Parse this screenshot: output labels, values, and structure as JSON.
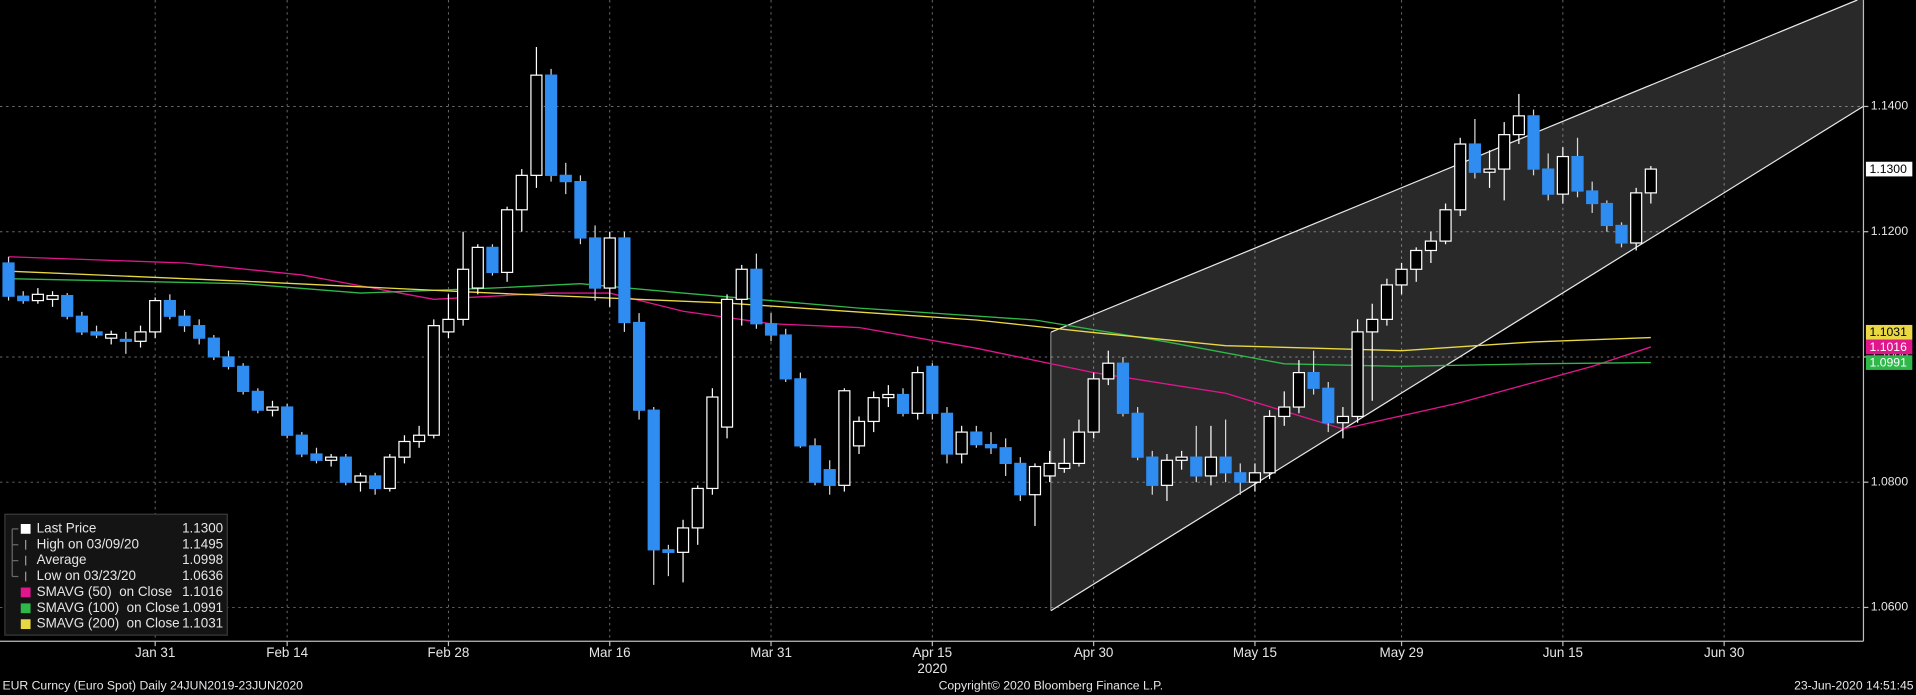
{
  "chart_data": {
    "type": "candlestick",
    "xlim": [
      -0.583,
      126.5
    ],
    "ylim": [
      1.0546,
      1.157
    ],
    "yticks": [
      {
        "value": 1.06,
        "label": "1.0600"
      },
      {
        "value": 1.08,
        "label": "1.0800"
      },
      {
        "value": 1.1,
        "label": "1.1000"
      },
      {
        "value": 1.12,
        "label": "1.1200"
      },
      {
        "value": 1.14,
        "label": "1.1400"
      }
    ],
    "xticks": [
      {
        "value": 10,
        "label": "Jan 31"
      },
      {
        "value": 19,
        "label": "Feb 14"
      },
      {
        "value": 30,
        "label": "Feb 28"
      },
      {
        "value": 41,
        "label": "Mar 16"
      },
      {
        "value": 52,
        "label": "Mar 31"
      },
      {
        "value": 63,
        "label": "Apr 15"
      },
      {
        "value": 74,
        "label": "Apr 30"
      },
      {
        "value": 85,
        "label": "May 15"
      },
      {
        "value": 95,
        "label": "May 29"
      },
      {
        "value": 106,
        "label": "Jun 15"
      },
      {
        "value": 117,
        "label": "Jun 30"
      }
    ],
    "year_label": {
      "value": 63,
      "label": "2020"
    },
    "grid": true,
    "up_color": "#ffffff",
    "down_color": "#2f8cf0",
    "open": [
      1.115,
      1.1097,
      1.109,
      1.1092,
      1.1098,
      1.1065,
      1.104,
      1.103,
      1.1028,
      1.1025,
      1.104,
      1.109,
      1.1065,
      1.105,
      1.103,
      1.1,
      1.0985,
      1.0945,
      1.0915,
      1.092,
      1.0875,
      1.0845,
      1.0835,
      1.084,
      1.08,
      1.081,
      1.079,
      1.084,
      1.0865,
      1.0875,
      1.104,
      1.106,
      1.111,
      1.1175,
      1.1135,
      1.1235,
      1.129,
      1.145,
      1.129,
      1.128,
      1.119,
      1.111,
      1.119,
      1.1055,
      1.0915,
      1.0692,
      1.0688,
      1.0727,
      1.079,
      1.0888,
      1.1092,
      1.114,
      1.1053,
      1.1035,
      1.0965,
      1.0858,
      1.082,
      1.0795,
      1.0858,
      1.0897,
      1.0935,
      1.094,
      1.091,
      1.0985,
      1.091,
      1.0845,
      1.088,
      1.086,
      1.0855,
      1.083,
      1.078,
      1.081,
      1.0822,
      1.083,
      1.088,
      1.0965,
      1.099,
      1.091,
      1.084,
      1.0795,
      1.0835,
      1.084,
      1.081,
      1.084,
      1.0815,
      1.08,
      1.0815,
      1.0905,
      1.092,
      1.0975,
      1.095,
      1.0895,
      1.0905,
      1.104,
      1.106,
      1.1115,
      1.114,
      1.117,
      1.1185,
      1.1235,
      1.134,
      1.1295,
      1.13,
      1.1355,
      1.1385,
      1.13,
      1.126,
      1.132,
      1.1265,
      1.1245,
      1.121,
      1.1182,
      1.1262
    ],
    "high": [
      1.116,
      1.1105,
      1.111,
      1.1105,
      1.1102,
      1.1072,
      1.105,
      1.1042,
      1.104,
      1.105,
      1.1095,
      1.11,
      1.1075,
      1.106,
      1.1035,
      1.101,
      1.099,
      1.095,
      1.093,
      1.0925,
      1.088,
      1.0855,
      1.0845,
      1.0845,
      1.0815,
      1.0815,
      1.0845,
      1.0875,
      1.089,
      1.106,
      1.11,
      1.12,
      1.118,
      1.118,
      1.124,
      1.13,
      1.1495,
      1.146,
      1.131,
      1.129,
      1.121,
      1.12,
      1.12,
      1.107,
      1.092,
      1.07,
      1.074,
      1.0795,
      1.095,
      1.11,
      1.1147,
      1.1165,
      1.107,
      1.1045,
      1.0975,
      1.087,
      1.0835,
      1.095,
      1.0905,
      1.0945,
      1.0955,
      1.095,
      1.0985,
      1.099,
      1.092,
      1.089,
      1.089,
      1.088,
      1.087,
      1.084,
      1.083,
      1.085,
      1.087,
      1.09,
      1.0975,
      1.101,
      1.1,
      1.092,
      1.085,
      1.0845,
      1.085,
      1.089,
      1.089,
      1.09,
      1.083,
      1.083,
      1.0915,
      1.0945,
      1.0995,
      1.101,
      1.096,
      1.092,
      1.106,
      1.1085,
      1.1125,
      1.115,
      1.1175,
      1.12,
      1.1245,
      1.135,
      1.138,
      1.133,
      1.1375,
      1.142,
      1.1395,
      1.1325,
      1.1335,
      1.135,
      1.128,
      1.125,
      1.1215,
      1.127,
      1.1305
    ],
    "low": [
      1.109,
      1.1085,
      1.1085,
      1.108,
      1.106,
      1.1035,
      1.103,
      1.102,
      1.1005,
      1.1015,
      1.103,
      1.106,
      1.104,
      1.102,
      1.0995,
      1.098,
      1.094,
      1.091,
      1.0905,
      1.087,
      1.084,
      1.083,
      1.0825,
      1.0795,
      1.0785,
      1.078,
      1.0785,
      1.083,
      1.0855,
      1.087,
      1.103,
      1.105,
      1.11,
      1.113,
      1.112,
      1.12,
      1.127,
      1.128,
      1.126,
      1.118,
      1.109,
      1.108,
      1.104,
      1.09,
      1.0636,
      1.065,
      1.064,
      1.07,
      1.078,
      1.087,
      1.105,
      1.1045,
      1.1025,
      1.096,
      1.0855,
      1.0795,
      1.078,
      1.0785,
      1.0845,
      1.088,
      1.092,
      1.0905,
      1.09,
      1.09,
      1.083,
      1.083,
      1.0855,
      1.0845,
      1.081,
      1.077,
      1.073,
      1.08,
      1.0815,
      1.0825,
      1.087,
      1.0955,
      1.0905,
      1.0835,
      1.078,
      1.077,
      1.082,
      1.08,
      1.0795,
      1.08,
      1.078,
      1.0785,
      1.0805,
      1.089,
      1.091,
      1.094,
      1.088,
      1.087,
      1.0895,
      1.093,
      1.105,
      1.11,
      1.112,
      1.115,
      1.118,
      1.1225,
      1.1285,
      1.127,
      1.125,
      1.134,
      1.129,
      1.125,
      1.1245,
      1.1255,
      1.123,
      1.12,
      1.1175,
      1.117,
      1.1245
    ],
    "close": [
      1.1097,
      1.109,
      1.11,
      1.1098,
      1.1065,
      1.104,
      1.1035,
      1.1036,
      1.1025,
      1.104,
      1.109,
      1.1065,
      1.105,
      1.103,
      1.1,
      1.0985,
      1.0945,
      1.0915,
      1.092,
      1.0875,
      1.0845,
      1.0835,
      1.084,
      1.08,
      1.081,
      1.079,
      1.084,
      1.0865,
      1.0875,
      1.105,
      1.106,
      1.114,
      1.1175,
      1.1135,
      1.1235,
      1.129,
      1.145,
      1.129,
      1.128,
      1.119,
      1.111,
      1.119,
      1.1055,
      1.0915,
      1.0692,
      1.0688,
      1.0727,
      1.079,
      1.0936,
      1.1092,
      1.114,
      1.1053,
      1.1035,
      1.0965,
      1.0858,
      1.08,
      1.0795,
      1.0946,
      1.0897,
      1.0935,
      1.094,
      1.091,
      1.0975,
      1.091,
      1.0845,
      1.088,
      1.086,
      1.0855,
      1.083,
      1.078,
      1.0825,
      1.083,
      1.083,
      1.088,
      1.0965,
      1.099,
      1.091,
      1.084,
      1.0795,
      1.0835,
      1.084,
      1.081,
      1.084,
      1.0815,
      1.08,
      1.0815,
      1.0905,
      1.092,
      1.0975,
      1.095,
      1.0895,
      1.0905,
      1.104,
      1.106,
      1.1115,
      1.114,
      1.117,
      1.1185,
      1.1235,
      1.134,
      1.1295,
      1.13,
      1.1355,
      1.1385,
      1.13,
      1.126,
      1.132,
      1.1265,
      1.1245,
      1.121,
      1.1182,
      1.1262,
      1.13
    ],
    "series": [
      {
        "name": "SMAVG (50)  on Close",
        "color": "#e0168c",
        "value_label": "1.1016",
        "x": [
          0,
          12,
          20,
          29,
          37,
          41,
          46,
          52,
          58,
          66,
          74,
          83,
          91,
          99,
          108,
          112
        ],
        "values": [
          1.116,
          1.115,
          1.1131,
          1.1092,
          1.1102,
          1.1102,
          1.1073,
          1.1053,
          1.1047,
          1.1014,
          1.0975,
          1.0942,
          1.0885,
          1.0927,
          1.0985,
          1.1016
        ]
      },
      {
        "name": "SMAVG (100)  on Close",
        "color": "#2fb84a",
        "value_label": "1.0991",
        "x": [
          0,
          16,
          24,
          33,
          39,
          46,
          58,
          70,
          79,
          87,
          95,
          104,
          112
        ],
        "values": [
          1.1125,
          1.1117,
          1.1102,
          1.111,
          1.1117,
          1.1102,
          1.1078,
          1.1059,
          1.1024,
          1.0989,
          1.0985,
          1.0989,
          1.0991
        ]
      },
      {
        "name": "SMAVG (200)  on Close",
        "color": "#e9d843",
        "value_label": "1.1031",
        "x": [
          0,
          16,
          33,
          49,
          66,
          74,
          83,
          95,
          104,
          112
        ],
        "values": [
          1.1137,
          1.1121,
          1.1102,
          1.1086,
          1.1059,
          1.1039,
          1.1018,
          1.101,
          1.1024,
          1.1031
        ]
      }
    ],
    "stats": [
      {
        "label": "Last Price",
        "value": "1.1300"
      },
      {
        "label": "High on 03/09/20",
        "value": "1.1495"
      },
      {
        "label": "Average",
        "value": "1.0998"
      },
      {
        "label": "Low on 03/23/20",
        "value": "1.0636"
      }
    ],
    "footer": {
      "left": "EUR Curncy (Euro Spot)  Daily 24JUN2019-23JUN2020",
      "center": "Copyright© 2020 Bloomberg Finance L.P.",
      "right": "23-Jun-2020 14:51:45"
    }
  }
}
